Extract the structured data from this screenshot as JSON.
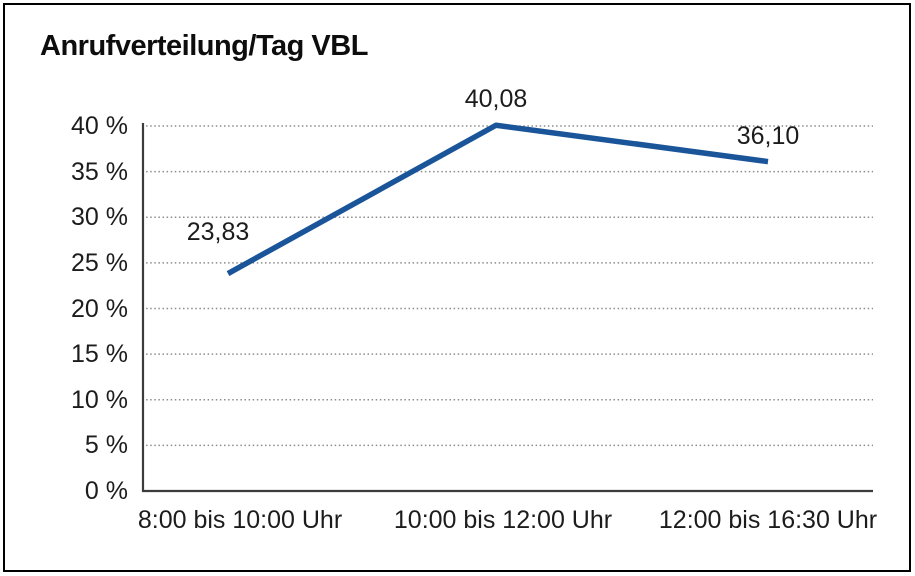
{
  "chart_data": {
    "type": "line",
    "title": "Anrufverteilung/Tag VBL",
    "categories": [
      "8:00 bis 10:00 Uhr",
      "10:00 bis 12:00 Uhr",
      "12:00 bis 16:30 Uhr"
    ],
    "values": [
      23.83,
      40.08,
      36.1
    ],
    "value_labels": [
      "23,83",
      "40,08",
      "36,10"
    ],
    "y_ticks": [
      "0 %",
      "5 %",
      "10 %",
      "15 %",
      "20 %",
      "25 %",
      "30 %",
      "35 %",
      "40 %"
    ],
    "ylim": [
      0,
      40
    ],
    "y_tick_step": 5,
    "grid": "dotted-horizontal",
    "legend": "none",
    "line_color": "#1A5499",
    "axis_color": "#3c3c3c",
    "grid_color": "#8c8c8c",
    "text_color": "#1c1c1c"
  }
}
